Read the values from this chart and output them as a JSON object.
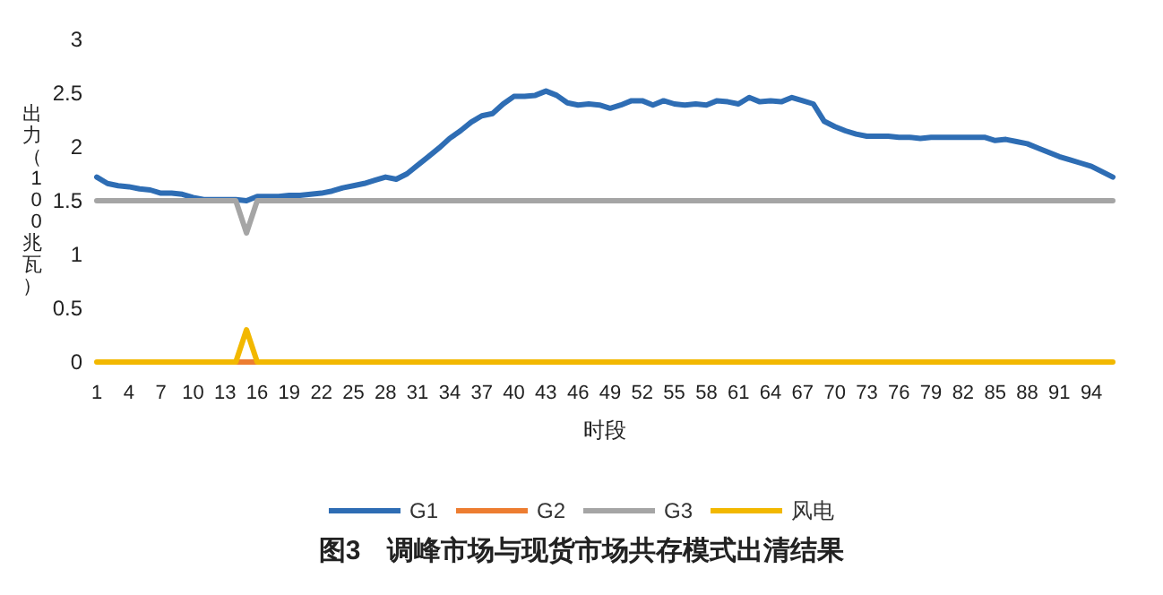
{
  "chart_data": {
    "type": "line",
    "title": "图3　调峰市场与现货市场共存模式出清结果",
    "xlabel": "时段",
    "ylabel": "出力（100兆瓦）",
    "categories": [
      "1",
      null,
      null,
      "4",
      null,
      null,
      "7",
      null,
      null,
      "10",
      null,
      null,
      "13",
      null,
      null,
      "16",
      null,
      null,
      "19",
      null,
      null,
      "22",
      null,
      null,
      "25",
      null,
      null,
      "28",
      null,
      null,
      "31",
      null,
      null,
      "34",
      null,
      null,
      "37",
      null,
      null,
      "40",
      null,
      null,
      "43",
      null,
      null,
      "46",
      null,
      null,
      "49",
      null,
      null,
      "52",
      null,
      null,
      "55",
      null,
      null,
      "58",
      null,
      null,
      "61",
      null,
      null,
      "64",
      null,
      null,
      "67",
      null,
      null,
      "70",
      null,
      null,
      "73",
      null,
      null,
      "76",
      null,
      null,
      "79",
      null,
      null,
      "82",
      null,
      null,
      "85",
      null,
      null,
      "88",
      null,
      null,
      "91",
      null,
      null,
      "94",
      null,
      null
    ],
    "series": [
      {
        "name": "G1",
        "color": "#2e6db4",
        "values": [
          1.72,
          1.66,
          1.64,
          1.63,
          1.61,
          1.6,
          1.57,
          1.57,
          1.56,
          1.53,
          1.51,
          1.51,
          1.51,
          1.51,
          1.5,
          1.54,
          1.54,
          1.54,
          1.55,
          1.55,
          1.56,
          1.57,
          1.59,
          1.62,
          1.64,
          1.66,
          1.69,
          1.72,
          1.7,
          1.75,
          1.83,
          1.91,
          1.99,
          2.08,
          2.15,
          2.23,
          2.29,
          2.31,
          2.4,
          2.47,
          2.47,
          2.48,
          2.52,
          2.48,
          2.41,
          2.39,
          2.4,
          2.39,
          2.36,
          2.39,
          2.43,
          2.43,
          2.39,
          2.43,
          2.4,
          2.39,
          2.4,
          2.39,
          2.43,
          2.42,
          2.4,
          2.46,
          2.42,
          2.43,
          2.42,
          2.46,
          2.43,
          2.4,
          2.24,
          2.19,
          2.15,
          2.12,
          2.1,
          2.1,
          2.1,
          2.09,
          2.09,
          2.08,
          2.09,
          2.09,
          2.09,
          2.09,
          2.09,
          2.09,
          2.06,
          2.07,
          2.05,
          2.03,
          1.99,
          1.95,
          1.91,
          1.88,
          1.85,
          1.82,
          1.77,
          1.72
        ]
      },
      {
        "name": "G2",
        "color": "#ed7d31",
        "values": [
          null,
          null,
          null,
          null,
          null,
          null,
          null,
          null,
          null,
          null,
          null,
          null,
          null,
          0,
          0,
          0,
          null,
          null,
          null,
          null,
          null,
          null,
          null,
          null,
          null,
          null,
          null,
          null,
          null,
          null,
          null,
          null,
          null,
          null,
          null,
          null,
          null,
          null,
          null,
          null,
          null,
          null,
          null,
          null,
          null,
          null,
          null,
          null,
          null,
          null,
          null,
          null,
          null,
          null,
          null,
          null,
          null,
          null,
          null,
          null,
          null,
          null,
          null,
          null,
          null,
          null,
          null,
          null,
          null,
          null,
          null,
          null,
          null,
          null,
          null,
          null,
          null,
          null,
          null,
          null,
          null,
          null,
          null,
          null,
          null,
          null,
          null,
          null,
          null,
          null,
          null,
          null,
          null,
          null,
          null,
          null
        ]
      },
      {
        "name": "G3",
        "color": "#a5a5a5",
        "values": [
          1.5,
          1.5,
          1.5,
          1.5,
          1.5,
          1.5,
          1.5,
          1.5,
          1.5,
          1.5,
          1.5,
          1.5,
          1.5,
          1.5,
          1.2,
          1.5,
          1.5,
          1.5,
          1.5,
          1.5,
          1.5,
          1.5,
          1.5,
          1.5,
          1.5,
          1.5,
          1.5,
          1.5,
          1.5,
          1.5,
          1.5,
          1.5,
          1.5,
          1.5,
          1.5,
          1.5,
          1.5,
          1.5,
          1.5,
          1.5,
          1.5,
          1.5,
          1.5,
          1.5,
          1.5,
          1.5,
          1.5,
          1.5,
          1.5,
          1.5,
          1.5,
          1.5,
          1.5,
          1.5,
          1.5,
          1.5,
          1.5,
          1.5,
          1.5,
          1.5,
          1.5,
          1.5,
          1.5,
          1.5,
          1.5,
          1.5,
          1.5,
          1.5,
          1.5,
          1.5,
          1.5,
          1.5,
          1.5,
          1.5,
          1.5,
          1.5,
          1.5,
          1.5,
          1.5,
          1.5,
          1.5,
          1.5,
          1.5,
          1.5,
          1.5,
          1.5,
          1.5,
          1.5,
          1.5,
          1.5,
          1.5,
          1.5,
          1.5,
          1.5,
          1.5,
          1.5
        ]
      },
      {
        "name": "风电",
        "color": "#f2b800",
        "values": [
          0,
          0,
          0,
          0,
          0,
          0,
          0,
          0,
          0,
          0,
          0,
          0,
          0,
          0,
          0.3,
          0,
          0,
          0,
          0,
          0,
          0,
          0,
          0,
          0,
          0,
          0,
          0,
          0,
          0,
          0,
          0,
          0,
          0,
          0,
          0,
          0,
          0,
          0,
          0,
          0,
          0,
          0,
          0,
          0,
          0,
          0,
          0,
          0,
          0,
          0,
          0,
          0,
          0,
          0,
          0,
          0,
          0,
          0,
          0,
          0,
          0,
          0,
          0,
          0,
          0,
          0,
          0,
          0,
          0,
          0,
          0,
          0,
          0,
          0,
          0,
          0,
          0,
          0,
          0,
          0,
          0,
          0,
          0,
          0,
          0,
          0,
          0,
          0,
          0,
          0,
          0,
          0,
          0,
          0,
          0,
          0
        ]
      }
    ],
    "ylim": [
      0,
      3
    ],
    "yticks": [
      0,
      0.5,
      1,
      1.5,
      2,
      2.5,
      3
    ],
    "grid": false,
    "legend": "bottom",
    "marker": "none",
    "line_style": "solid"
  }
}
